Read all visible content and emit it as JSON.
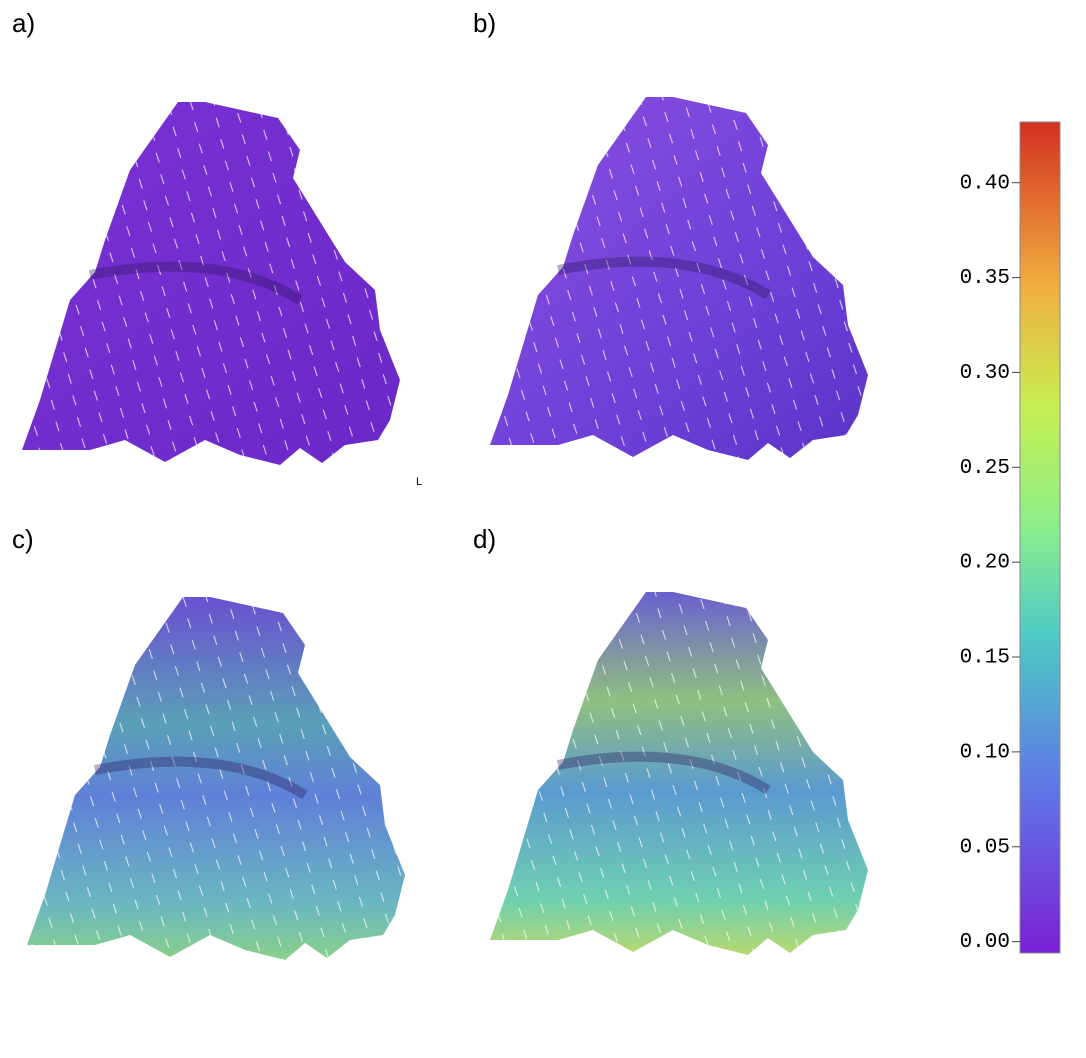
{
  "panels": [
    {
      "label": "a)"
    },
    {
      "label": "b)"
    },
    {
      "label": "c)"
    },
    {
      "label": "d)"
    }
  ],
  "stray_text": "L",
  "colorbar": {
    "range": [
      -0.006,
      0.432
    ],
    "ticks": [
      {
        "value": 0,
        "label": "0.00"
      },
      {
        "value": 0.05,
        "label": "0.05"
      },
      {
        "value": 0.1,
        "label": "0.10"
      },
      {
        "value": 0.15,
        "label": "0.15"
      },
      {
        "value": 0.2,
        "label": "0.20"
      },
      {
        "value": 0.25,
        "label": "0.25"
      },
      {
        "value": 0.3,
        "label": "0.30"
      },
      {
        "value": 0.35,
        "label": "0.35"
      },
      {
        "value": 0.4,
        "label": "0.40"
      }
    ]
  }
}
